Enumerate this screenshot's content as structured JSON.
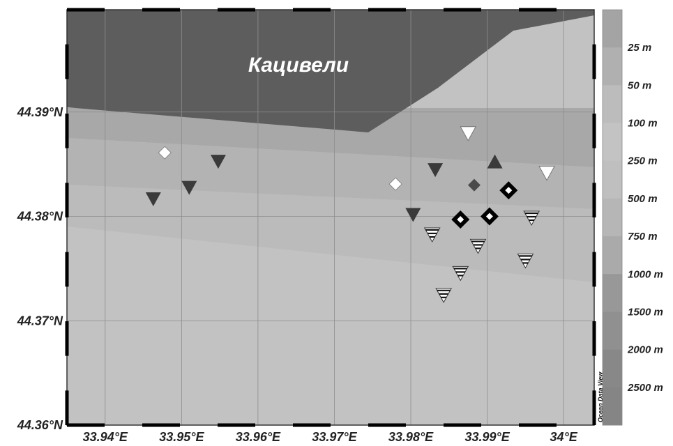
{
  "map": {
    "place_label": "Кацивели",
    "watermark": "Ocean Data View",
    "lon_range": [
      33.935,
      34.004
    ],
    "lat_range": [
      44.36,
      44.3998
    ],
    "lat_labels": [
      {
        "lat": 44.39,
        "text": "44.39°N"
      },
      {
        "lat": 44.38,
        "text": "44.38°N"
      },
      {
        "lat": 44.37,
        "text": "44.37°N"
      },
      {
        "lat": 44.36,
        "text": "44.36°N"
      }
    ],
    "lon_labels": [
      {
        "lon": 33.94,
        "text": "33.94°E"
      },
      {
        "lon": 33.95,
        "text": "33.95°E"
      },
      {
        "lon": 33.96,
        "text": "33.96°E"
      },
      {
        "lon": 33.97,
        "text": "33.97°E"
      },
      {
        "lon": 33.98,
        "text": "33.98°E"
      },
      {
        "lon": 33.99,
        "text": "33.99°E"
      },
      {
        "lon": 34.0,
        "text": "34°E"
      }
    ],
    "grid_lons": [
      33.94,
      33.95,
      33.96,
      33.97,
      33.98,
      33.99,
      34.0
    ],
    "grid_lats": [
      44.39,
      44.38,
      44.37
    ],
    "colors": {
      "land": "#5d5d5d",
      "water_shallow": "#a9a9a9",
      "water_mid": "#b9b9b9",
      "water_deep": "#c2c2c2",
      "marker_dark": "#3a3a3a",
      "marker_light": "#ffffff",
      "grid": "#8c8c8c"
    }
  },
  "depth_scale": {
    "labels": [
      "25 m",
      "50 m",
      "100 m",
      "250 m",
      "500 m",
      "750 m",
      "1000 m",
      "1500 m",
      "2000 m",
      "2500 m"
    ],
    "colors": [
      "#a4a4a4",
      "#b0b0b0",
      "#bcbcbc",
      "#c3c3c3",
      "#bfbfbf",
      "#b6b6b6",
      "#aaaaaa",
      "#989898",
      "#909090",
      "#888888",
      "#858585"
    ]
  },
  "stations": [
    {
      "type": "diamond-white",
      "lon": 33.9478,
      "lat": 44.3861
    },
    {
      "type": "diamond-white",
      "lon": 33.978,
      "lat": 44.3831
    },
    {
      "type": "triangle-down-dark",
      "lon": 33.9463,
      "lat": 44.3817
    },
    {
      "type": "triangle-down-dark",
      "lon": 33.951,
      "lat": 44.3828
    },
    {
      "type": "triangle-down-dark",
      "lon": 33.9548,
      "lat": 44.3853
    },
    {
      "type": "triangle-down-dark",
      "lon": 33.9803,
      "lat": 44.3802
    },
    {
      "type": "triangle-down-dark",
      "lon": 33.9832,
      "lat": 44.3845
    },
    {
      "type": "triangle-up-dark",
      "lon": 33.991,
      "lat": 44.3852
    },
    {
      "type": "diamond-dark",
      "lon": 33.9883,
      "lat": 44.383
    },
    {
      "type": "triangle-down-white",
      "lon": 33.9875,
      "lat": 44.388
    },
    {
      "type": "triangle-down-white",
      "lon": 33.9978,
      "lat": 44.3842
    },
    {
      "type": "diamond-ring",
      "lon": 33.9865,
      "lat": 44.3797
    },
    {
      "type": "diamond-ring",
      "lon": 33.9903,
      "lat": 44.38
    },
    {
      "type": "diamond-ring",
      "lon": 33.9928,
      "lat": 44.3825
    },
    {
      "type": "triangle-striped",
      "lon": 33.9828,
      "lat": 44.3783
    },
    {
      "type": "triangle-striped",
      "lon": 33.9843,
      "lat": 44.3725
    },
    {
      "type": "triangle-striped",
      "lon": 33.9865,
      "lat": 44.3746
    },
    {
      "type": "triangle-striped",
      "lon": 33.9888,
      "lat": 44.3772
    },
    {
      "type": "triangle-striped",
      "lon": 33.995,
      "lat": 44.3758
    },
    {
      "type": "triangle-striped",
      "lon": 33.9958,
      "lat": 44.3799
    }
  ]
}
